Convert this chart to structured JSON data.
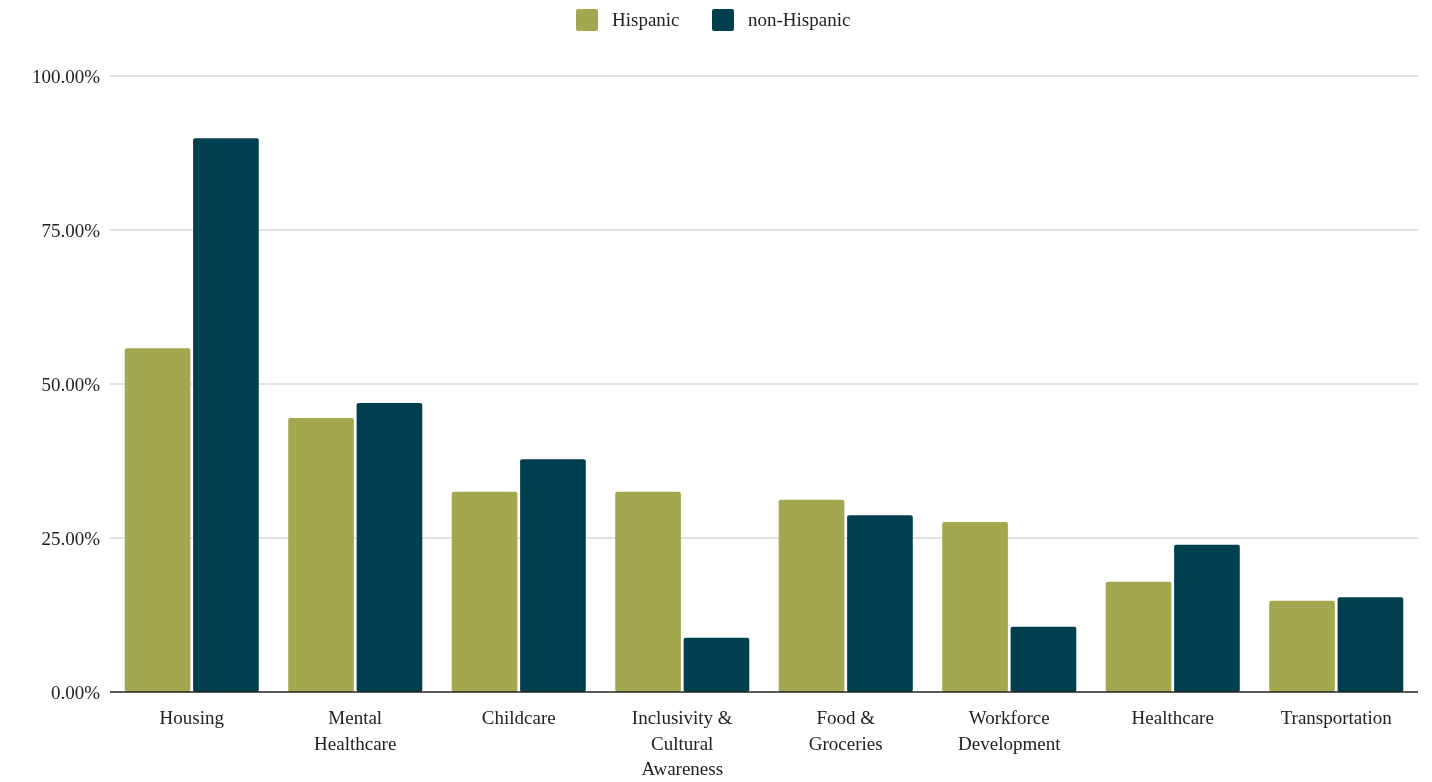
{
  "chart_data": {
    "type": "bar",
    "categories": [
      "Housing",
      "Mental Healthcare",
      "Childcare",
      "Inclusivity & Cultural Awareness",
      "Food & Groceries",
      "Workforce Development",
      "Healthcare",
      "Transportation"
    ],
    "series": [
      {
        "name": "Hispanic",
        "color": "#a3a74f",
        "values": [
          55.8,
          44.5,
          32.5,
          32.5,
          31.2,
          27.6,
          17.9,
          14.8
        ]
      },
      {
        "name": "non-Hispanic",
        "color": "#003f4f",
        "values": [
          89.9,
          46.9,
          37.8,
          8.8,
          28.7,
          10.6,
          23.9,
          15.4
        ]
      }
    ],
    "ylim": [
      0,
      100
    ],
    "yticks": [
      {
        "value": 0,
        "label": "0.00%"
      },
      {
        "value": 25,
        "label": "25.00%"
      },
      {
        "value": 50,
        "label": "50.00%"
      },
      {
        "value": 75,
        "label": "75.00%"
      },
      {
        "value": 100,
        "label": "100.00%"
      }
    ],
    "grid": "y",
    "legend": "top"
  }
}
